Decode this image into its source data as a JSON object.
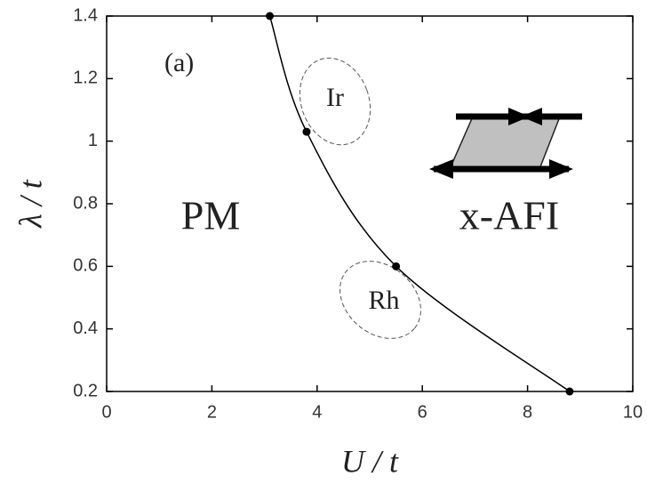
{
  "chart_data": {
    "type": "line",
    "x_label": "U / t",
    "y_label": "λ / t",
    "x": [
      3.1,
      3.8,
      5.5,
      8.8
    ],
    "values": [
      1.4,
      1.03,
      0.6,
      0.2
    ],
    "color": "#000000",
    "xlim": [
      0,
      10
    ],
    "xticks": [
      0,
      2,
      4,
      6,
      8,
      10
    ],
    "ylim": [
      0.2,
      1.4
    ],
    "yticks": [
      0.2,
      0.4,
      0.6,
      0.8,
      1,
      1.2,
      1.4
    ],
    "grid": false,
    "annotations": [
      "(a)",
      "Ir",
      "Rh",
      "PM",
      "x-AFI"
    ]
  }
}
